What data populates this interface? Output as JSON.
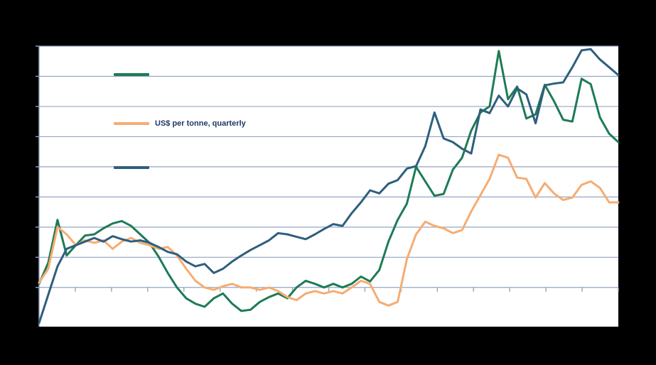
{
  "chart_data": {
    "type": "line",
    "title": "",
    "xlabel": "",
    "ylabel": "",
    "ylim": [
      -65,
      400
    ],
    "gridline_values": [
      0,
      50,
      100,
      150,
      200,
      250,
      300,
      350,
      400
    ],
    "x_tick_count": 17,
    "grid_on": true,
    "grid_color": "#95A4C6",
    "axis_color": "#95A4C6",
    "plot_bg": "#FFFFFF",
    "page_bg": "#000000",
    "legend_position": "top-left-inside",
    "legend": [
      {
        "label": "",
        "color": "#1E7B55",
        "label_color": "#000000"
      },
      {
        "label": "US$ per tonne, quarterly",
        "color": "#F6AC72",
        "label_color": "#1F3864"
      },
      {
        "label": "",
        "color": "#2E5F7D",
        "label_color": "#000000"
      }
    ],
    "series": [
      {
        "name": "series-green",
        "color": "#1E7B55",
        "values": [
          6,
          41,
          112,
          53,
          70,
          86,
          88,
          98,
          106,
          110,
          102,
          88,
          74,
          51,
          24,
          0,
          -18,
          -27,
          -32,
          -18,
          -10,
          -27,
          -39,
          -37,
          -24,
          -16,
          -10,
          -18,
          0,
          11,
          6,
          0,
          6,
          0,
          6,
          18,
          10,
          29,
          76,
          112,
          139,
          200,
          176,
          152,
          155,
          195,
          215,
          260,
          290,
          300,
          392,
          312,
          333,
          280,
          287,
          336,
          309,
          278,
          275,
          346,
          337,
          282,
          255,
          241
        ]
      },
      {
        "name": "series-orange",
        "color": "#F6AC72",
        "values": [
          8,
          31,
          100,
          88,
          70,
          78,
          74,
          78,
          64,
          76,
          82,
          74,
          70,
          64,
          67,
          53,
          31,
          11,
          0,
          -4,
          2,
          6,
          0,
          0,
          -4,
          0,
          -6,
          -16,
          -21,
          -10,
          -6,
          -10,
          -6,
          -10,
          0,
          11,
          6,
          -24,
          -30,
          -24,
          47,
          88,
          109,
          102,
          98,
          90,
          95,
          126,
          153,
          180,
          220,
          215,
          182,
          180,
          149,
          173,
          156,
          145,
          149,
          170,
          176,
          165,
          141,
          141
        ]
      },
      {
        "name": "series-teal",
        "color": "#2E5F7D",
        "values": [
          -59,
          -12,
          35,
          64,
          70,
          76,
          82,
          76,
          85,
          80,
          76,
          78,
          74,
          67,
          59,
          55,
          43,
          35,
          39,
          24,
          31,
          43,
          53,
          62,
          70,
          78,
          90,
          88,
          84,
          80,
          88,
          97,
          105,
          102,
          123,
          141,
          161,
          156,
          172,
          178,
          197,
          201,
          234,
          290,
          247,
          241,
          230,
          222,
          295,
          289,
          318,
          300,
          330,
          320,
          272,
          335,
          338,
          340,
          365,
          393,
          395,
          378,
          365,
          352
        ]
      }
    ]
  }
}
